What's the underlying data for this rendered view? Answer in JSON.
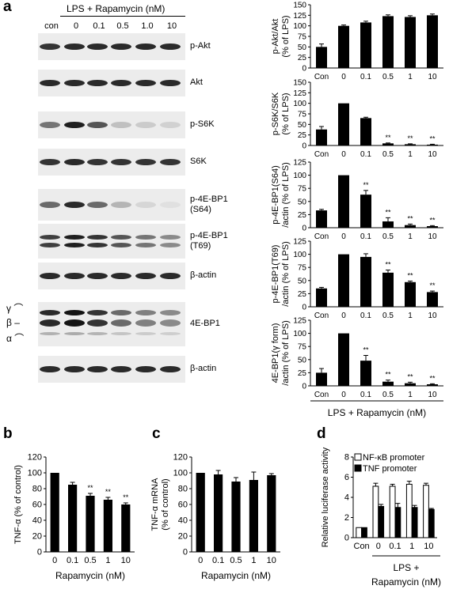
{
  "panel_letters": {
    "a": "a",
    "b": "b",
    "c": "c",
    "d": "d"
  },
  "blots": {
    "header": "LPS + Rapamycin (nM)",
    "lanes": [
      "con",
      "0",
      "0.1",
      "0.5",
      "1.0",
      "10"
    ],
    "labels": [
      "p-Akt",
      "Akt",
      "p-S6K",
      "S6K",
      "p-4E-BP1\n(S64)",
      "p-4E-BP1\n(T69)",
      "β-actin",
      "4E-BP1",
      "β-actin"
    ],
    "isoform_labels": [
      "γ",
      "β",
      "α"
    ]
  },
  "chart_data": [
    {
      "id": "a1",
      "type": "bar",
      "categories": [
        "Con",
        "0",
        "0.1",
        "0.5",
        "1",
        "10"
      ],
      "values": [
        50,
        100,
        108,
        123,
        121,
        125
      ],
      "errors": [
        7,
        2,
        3,
        3,
        3,
        3
      ],
      "sig": [
        "",
        "",
        "",
        "",
        "",
        ""
      ],
      "ylabel": "p-Akt/Akt\n(% of LPS)",
      "ylim": [
        0,
        150
      ],
      "yticks": [
        0,
        25,
        50,
        75,
        100,
        125,
        150
      ]
    },
    {
      "id": "a2",
      "type": "bar",
      "categories": [
        "Con",
        "0",
        "0.1",
        "0.5",
        "1",
        "10"
      ],
      "values": [
        38,
        100,
        65,
        5,
        3,
        2
      ],
      "errors": [
        7,
        0,
        2,
        1,
        1,
        1
      ],
      "sig": [
        "",
        "",
        "",
        "**",
        "**",
        "**"
      ],
      "ylabel": "p-S6K/S6K\n(% of LPS)",
      "ylim": [
        0,
        150
      ],
      "yticks": [
        0,
        25,
        50,
        75,
        100,
        125,
        150
      ]
    },
    {
      "id": "a3",
      "type": "bar",
      "categories": [
        "Con",
        "0",
        "0.1",
        "0.5",
        "1",
        "10"
      ],
      "values": [
        33,
        100,
        63,
        12,
        5,
        3
      ],
      "errors": [
        2,
        0,
        8,
        7,
        2,
        1
      ],
      "sig": [
        "",
        "",
        "**",
        "**",
        "**",
        "**"
      ],
      "ylabel": "p-4E-BP1(S64)\n/actin (% of LPS)",
      "ylim": [
        0,
        125
      ],
      "yticks": [
        0,
        25,
        50,
        75,
        100,
        125
      ]
    },
    {
      "id": "a4",
      "type": "bar",
      "categories": [
        "Con",
        "0",
        "0.1",
        "0.5",
        "1",
        "10"
      ],
      "values": [
        35,
        100,
        95,
        65,
        47,
        28
      ],
      "errors": [
        2,
        0,
        6,
        5,
        2,
        2
      ],
      "sig": [
        "",
        "",
        "",
        "**",
        "**",
        "**"
      ],
      "ylabel": "p-4E-BP1(T69)\n/actin (% of LPS)",
      "ylim": [
        0,
        125
      ],
      "yticks": [
        0,
        25,
        50,
        75,
        100,
        125
      ]
    },
    {
      "id": "a5",
      "type": "bar",
      "categories": [
        "Con",
        "0",
        "0.1",
        "0.5",
        "1",
        "10"
      ],
      "values": [
        25,
        100,
        48,
        8,
        5,
        3
      ],
      "errors": [
        8,
        0,
        10,
        3,
        2,
        1
      ],
      "sig": [
        "",
        "",
        "**",
        "**",
        "**",
        "**"
      ],
      "ylabel": "4E-BP1(γ form)\n/actin (% of LPS)",
      "ylim": [
        0,
        125
      ],
      "yticks": [
        0,
        25,
        50,
        75,
        100,
        125
      ]
    },
    {
      "id": "b",
      "type": "bar",
      "categories": [
        "0",
        "0.1",
        "0.5",
        "1",
        "10"
      ],
      "values": [
        100,
        85,
        71,
        66,
        60
      ],
      "errors": [
        0,
        3,
        3,
        3,
        2
      ],
      "sig": [
        "",
        "",
        "**",
        "**",
        "**"
      ],
      "xlabel": "Rapamycin (nM)",
      "ylabel": "TNF-α (% of control)",
      "ylim": [
        0,
        120
      ],
      "yticks": [
        0,
        20,
        40,
        60,
        80,
        100,
        120
      ]
    },
    {
      "id": "c",
      "type": "bar",
      "categories": [
        "0",
        "0.1",
        "0.5",
        "1",
        "10"
      ],
      "values": [
        100,
        98,
        89,
        91,
        97
      ],
      "errors": [
        0,
        5,
        5,
        10,
        2
      ],
      "sig": [
        "",
        "",
        "",
        "",
        ""
      ],
      "xlabel": "Rapamycin (nM)",
      "ylabel": "TNF-α mRNA\n(% of control)",
      "ylim": [
        0,
        120
      ],
      "yticks": [
        0,
        20,
        40,
        60,
        80,
        100,
        120
      ]
    },
    {
      "id": "d",
      "type": "bar",
      "categories": [
        "Con",
        "0",
        "0.1",
        "1",
        "10"
      ],
      "series": [
        {
          "name": "NF-κB promoter",
          "values": [
            1,
            5.1,
            5.1,
            5.3,
            5.2
          ],
          "errors": [
            0,
            0.3,
            0.2,
            0.3,
            0.2
          ]
        },
        {
          "name": "TNF promoter",
          "values": [
            1,
            3.1,
            3.0,
            3.0,
            2.8
          ],
          "errors": [
            0,
            0.2,
            0.4,
            0.2,
            0.1
          ]
        }
      ],
      "ylabel": "Relative luciferase activity",
      "ylim": [
        0,
        8
      ],
      "yticks": [
        0,
        2,
        4,
        6,
        8
      ]
    }
  ],
  "a_xlabel": "LPS + Rapamycin (nM)",
  "d_xlabel": "LPS +\nRapamycin (nM)"
}
